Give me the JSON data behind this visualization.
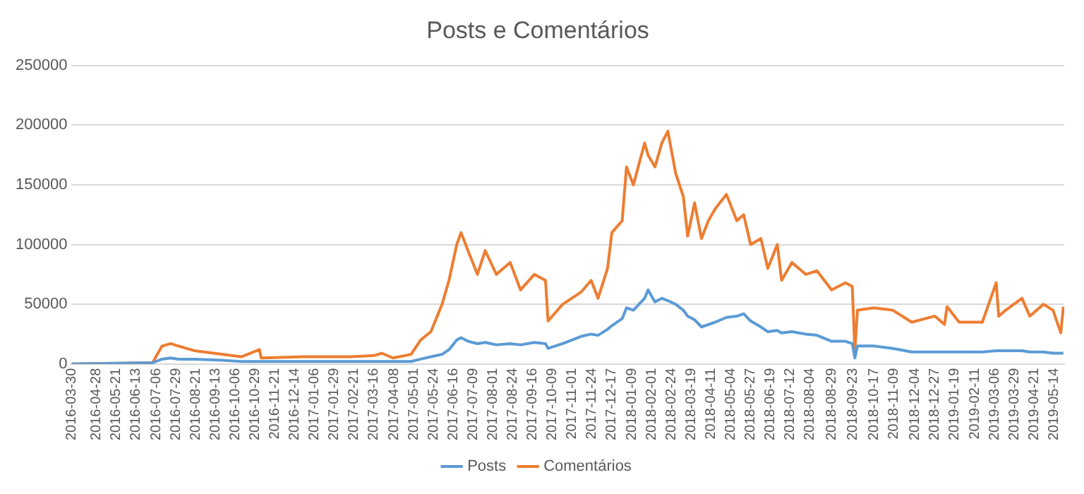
{
  "chart_data": {
    "type": "line",
    "title": "Posts e Comentários",
    "x": [
      "2016-03-30",
      "2016-07-02",
      "2016-07-13",
      "2016-07-23",
      "2016-08-01",
      "2016-08-20",
      "2016-09-22",
      "2016-10-13",
      "2016-11-03",
      "2016-11-05",
      "2016-12-24",
      "2017-02-16",
      "2017-03-16",
      "2017-03-25",
      "2017-04-07",
      "2017-04-28",
      "2017-05-09",
      "2017-05-21",
      "2017-06-03",
      "2017-06-11",
      "2017-06-20",
      "2017-06-25",
      "2017-07-03",
      "2017-07-14",
      "2017-07-23",
      "2017-08-05",
      "2017-08-21",
      "2017-09-02",
      "2017-09-18",
      "2017-10-01",
      "2017-10-04",
      "2017-10-21",
      "2017-11-11",
      "2017-11-23",
      "2017-12-01",
      "2017-12-12",
      "2017-12-17",
      "2017-12-29",
      "2018-01-03",
      "2018-01-11",
      "2018-01-24",
      "2018-01-28",
      "2018-02-05",
      "2018-02-13",
      "2018-02-20",
      "2018-03-01",
      "2018-03-10",
      "2018-03-15",
      "2018-03-23",
      "2018-03-31",
      "2018-04-08",
      "2018-04-16",
      "2018-04-29",
      "2018-05-11",
      "2018-05-19",
      "2018-05-27",
      "2018-06-08",
      "2018-06-16",
      "2018-06-27",
      "2018-07-02",
      "2018-07-14",
      "2018-07-30",
      "2018-08-12",
      "2018-08-29",
      "2018-09-14",
      "2018-09-22",
      "2018-09-25",
      "2018-09-28",
      "2018-10-17",
      "2018-11-08",
      "2018-11-30",
      "2018-12-16",
      "2018-12-27",
      "2019-01-07",
      "2019-01-10",
      "2019-01-24",
      "2019-02-20",
      "2019-03-08",
      "2019-03-11",
      "2019-03-19",
      "2019-04-07",
      "2019-04-16",
      "2019-05-02",
      "2019-05-13",
      "2019-05-22",
      "2019-05-25"
    ],
    "series": [
      {
        "name": "Posts",
        "color": "#5b9bd5",
        "values": [
          0,
          1000,
          4000,
          5000,
          4000,
          4000,
          3000,
          2000,
          2000,
          2000,
          2000,
          2000,
          2000,
          2000,
          2000,
          2000,
          4000,
          6000,
          8000,
          12000,
          20000,
          22000,
          19000,
          17000,
          18000,
          16000,
          17000,
          16000,
          18000,
          17000,
          13000,
          17000,
          23000,
          25000,
          24000,
          29000,
          32000,
          38000,
          47000,
          45000,
          55000,
          62000,
          52000,
          55000,
          53000,
          50000,
          45000,
          40000,
          37000,
          31000,
          33000,
          35000,
          39000,
          40000,
          42000,
          36000,
          31000,
          27000,
          28000,
          26000,
          27000,
          25000,
          24000,
          19000,
          19000,
          17000,
          5000,
          15000,
          15000,
          13000,
          10000,
          10000,
          10000,
          10000,
          10000,
          10000,
          10000,
          11000,
          11000,
          11000,
          11000,
          10000,
          10000,
          9000,
          9000,
          9000
        ]
      },
      {
        "name": "Comentários",
        "color": "#ed7d31",
        "values": [
          0,
          1000,
          15000,
          17000,
          15000,
          11000,
          8000,
          6000,
          12000,
          5000,
          6000,
          6000,
          7000,
          9000,
          5000,
          8000,
          20000,
          27000,
          50000,
          70000,
          100000,
          110000,
          95000,
          75000,
          95000,
          75000,
          85000,
          62000,
          75000,
          70000,
          36000,
          50000,
          60000,
          70000,
          55000,
          80000,
          110000,
          120000,
          165000,
          150000,
          185000,
          175000,
          165000,
          185000,
          195000,
          160000,
          140000,
          107000,
          135000,
          105000,
          120000,
          130000,
          142000,
          120000,
          125000,
          100000,
          105000,
          80000,
          100000,
          70000,
          85000,
          75000,
          78000,
          62000,
          68000,
          65000,
          11000,
          45000,
          47000,
          45000,
          35000,
          38000,
          40000,
          33000,
          48000,
          35000,
          35000,
          68000,
          40000,
          45000,
          55000,
          40000,
          50000,
          45000,
          26000,
          48000
        ]
      }
    ],
    "xlim": [
      "2016-03-30",
      "2019-05-26"
    ],
    "xticks": [
      "2016-03-30",
      "2016-04-28",
      "2016-05-21",
      "2016-06-13",
      "2016-07-06",
      "2016-07-29",
      "2016-08-21",
      "2016-09-13",
      "2016-10-06",
      "2016-10-29",
      "2016-11-21",
      "2016-12-14",
      "2017-01-06",
      "2017-01-29",
      "2017-02-21",
      "2017-03-16",
      "2017-04-08",
      "2017-05-01",
      "2017-05-24",
      "2017-06-16",
      "2017-07-09",
      "2017-08-01",
      "2017-08-24",
      "2017-09-16",
      "2017-10-09",
      "2017-11-01",
      "2017-11-24",
      "2017-12-17",
      "2018-01-09",
      "2018-02-01",
      "2018-02-24",
      "2018-03-19",
      "2018-04-11",
      "2018-05-04",
      "2018-05-27",
      "2018-06-19",
      "2018-07-12",
      "2018-08-04",
      "2018-08-29",
      "2018-09-23",
      "2018-10-17",
      "2018-11-09",
      "2018-12-04",
      "2018-12-27",
      "2019-01-19",
      "2019-02-11",
      "2019-03-06",
      "2019-03-29",
      "2019-04-21",
      "2019-05-14"
    ],
    "ylim": [
      0,
      250000
    ],
    "yticks": [
      0,
      50000,
      100000,
      150000,
      200000,
      250000
    ],
    "grid": "y",
    "legend": "bottom",
    "marker": "none",
    "line_style": "solid"
  }
}
